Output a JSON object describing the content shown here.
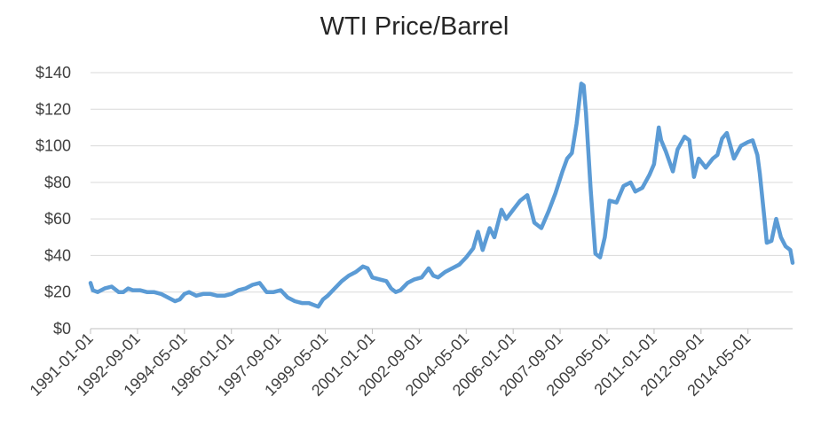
{
  "chart_data": {
    "type": "line",
    "title": "WTI Price/Barrel",
    "xlabel": "",
    "ylabel": "",
    "ylim": [
      0,
      140
    ],
    "y_ticks": [
      "$0",
      "$20",
      "$40",
      "$60",
      "$80",
      "$100",
      "$120",
      "$140"
    ],
    "y_tick_values": [
      0,
      20,
      40,
      60,
      80,
      100,
      120,
      140
    ],
    "x_tick_labels": [
      "1991-01-01",
      "1992-09-01",
      "1994-05-01",
      "1996-01-01",
      "1997-09-01",
      "1999-05-01",
      "2001-01-01",
      "2002-09-01",
      "2004-05-01",
      "2006-01-01",
      "2007-09-01",
      "2009-05-01",
      "2011-01-01",
      "2012-09-01",
      "2014-05-01"
    ],
    "grid": true,
    "series_color": "#5b9bd5",
    "series": [
      {
        "x": [
          "1991-01-01",
          "1991-02-01",
          "1991-04-01",
          "1991-07-01",
          "1991-10-01",
          "1992-01-01",
          "1992-03-01",
          "1992-05-01",
          "1992-07-01",
          "1992-10-01",
          "1993-01-01",
          "1993-04-01",
          "1993-07-01",
          "1993-10-01",
          "1994-01-01",
          "1994-03-01",
          "1994-05-01",
          "1994-07-01",
          "1994-10-01",
          "1995-01-01",
          "1995-04-01",
          "1995-07-01",
          "1995-10-01",
          "1996-01-01",
          "1996-04-01",
          "1996-07-01",
          "1996-10-01",
          "1997-01-01",
          "1997-04-01",
          "1997-07-01",
          "1997-10-01",
          "1998-01-01",
          "1998-04-01",
          "1998-07-01",
          "1998-10-01",
          "1998-12-01",
          "1999-02-01",
          "1999-04-01",
          "1999-06-01",
          "1999-09-01",
          "1999-12-01",
          "2000-03-01",
          "2000-06-01",
          "2000-09-01",
          "2000-11-01",
          "2001-01-01",
          "2001-04-01",
          "2001-07-01",
          "2001-09-01",
          "2001-11-01",
          "2002-01-01",
          "2002-04-01",
          "2002-07-01",
          "2002-10-01",
          "2003-01-01",
          "2003-03-01",
          "2003-05-01",
          "2003-08-01",
          "2003-11-01",
          "2004-02-01",
          "2004-05-01",
          "2004-08-01",
          "2004-10-01",
          "2004-12-01",
          "2005-03-01",
          "2005-05-01",
          "2005-08-01",
          "2005-10-01",
          "2006-01-01",
          "2006-04-01",
          "2006-07-01",
          "2006-10-01",
          "2007-01-01",
          "2007-04-01",
          "2007-07-01",
          "2007-10-01",
          "2007-12-01",
          "2008-02-01",
          "2008-04-01",
          "2008-06-01",
          "2008-07-01",
          "2008-08-01",
          "2008-10-01",
          "2008-12-01",
          "2009-02-01",
          "2009-04-01",
          "2009-06-01",
          "2009-09-01",
          "2009-12-01",
          "2010-03-01",
          "2010-05-01",
          "2010-08-01",
          "2010-11-01",
          "2011-01-01",
          "2011-03-01",
          "2011-04-01",
          "2011-06-01",
          "2011-09-01",
          "2011-11-01",
          "2012-02-01",
          "2012-04-01",
          "2012-06-01",
          "2012-08-01",
          "2012-11-01",
          "2013-02-01",
          "2013-04-01",
          "2013-06-01",
          "2013-08-01",
          "2013-11-01",
          "2014-02-01",
          "2014-05-01",
          "2014-07-01",
          "2014-09-01",
          "2014-10-01",
          "2014-12-01",
          "2015-01-01",
          "2015-03-01",
          "2015-05-01",
          "2015-07-01",
          "2015-09-01",
          "2015-11-01",
          "2015-12-01"
        ],
        "values": [
          25,
          21,
          20,
          22,
          23,
          20,
          20,
          22,
          21,
          21,
          20,
          20,
          19,
          17,
          15,
          16,
          19,
          20,
          18,
          19,
          19,
          18,
          18,
          19,
          21,
          22,
          24,
          25,
          20,
          20,
          21,
          17,
          15,
          14,
          14,
          13,
          12,
          16,
          18,
          22,
          26,
          29,
          31,
          34,
          33,
          28,
          27,
          26,
          22,
          20,
          21,
          25,
          27,
          28,
          33,
          29,
          28,
          31,
          33,
          35,
          39,
          44,
          53,
          43,
          55,
          50,
          65,
          60,
          65,
          70,
          73,
          58,
          55,
          64,
          74,
          86,
          93,
          96,
          112,
          134,
          133,
          118,
          76,
          41,
          39,
          50,
          70,
          69,
          78,
          80,
          75,
          77,
          84,
          90,
          110,
          103,
          97,
          86,
          98,
          105,
          103,
          83,
          93,
          88,
          93,
          95,
          104,
          107,
          93,
          100,
          102,
          103,
          95,
          85,
          60,
          47,
          48,
          60,
          50,
          45,
          43,
          36
        ]
      }
    ]
  }
}
